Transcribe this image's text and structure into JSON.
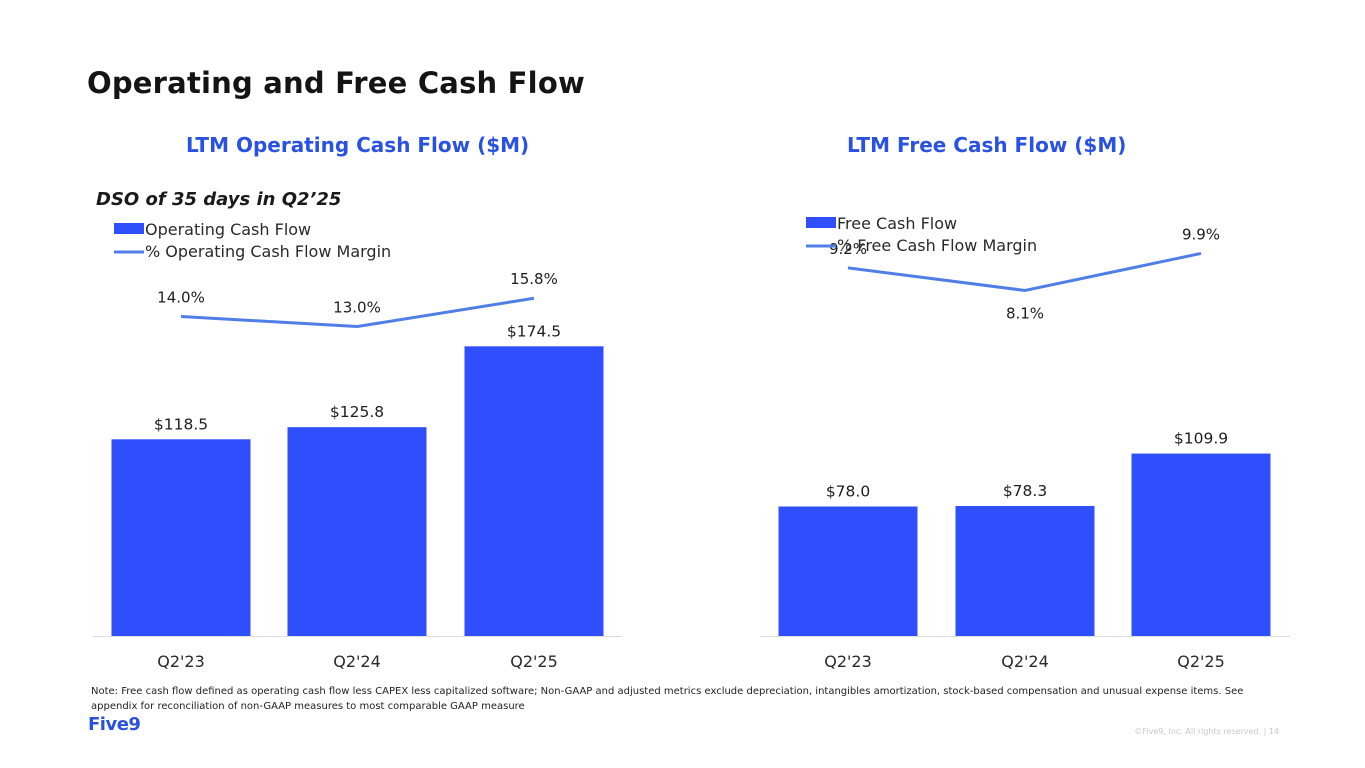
{
  "page": {
    "title": "Operating and Free Cash Flow",
    "dso_note": "DSO of 35 days in Q2’25",
    "footnote": "Note: Free cash flow defined as operating cash flow less CAPEX less capitalized software; Non-GAAP and adjusted metrics exclude depreciation, intangibles amortization, stock-based compensation and unusual expense items. See appendix for reconciliation of non-GAAP measures to most comparable GAAP measure",
    "logo": "Five9",
    "copyright": "©Five9, Inc. All rights reserved. | 14"
  },
  "colors": {
    "bar": "#2e4ffb",
    "line": "#4f7fe6",
    "title_accent": "#2952e3",
    "axis": "#dddddd"
  },
  "chart_data": [
    {
      "type": "bar",
      "title": "LTM Operating Cash Flow ($M)",
      "categories": [
        "Q2'23",
        "Q2'24",
        "Q2'25"
      ],
      "series": [
        {
          "name": "Operating Cash Flow",
          "type": "bar",
          "values": [
            118.5,
            125.8,
            174.5
          ],
          "labels": [
            "$118.5",
            "$125.8",
            "$174.5"
          ]
        },
        {
          "name": "% Operating Cash Flow Margin",
          "type": "line",
          "values": [
            14.0,
            13.0,
            15.8
          ],
          "labels": [
            "14.0%",
            "13.0%",
            "15.8%"
          ]
        }
      ],
      "ylim": [
        0,
        200
      ],
      "y2lim": [
        0,
        18
      ],
      "legend": "top-left"
    },
    {
      "type": "bar",
      "title": "LTM Free Cash Flow ($M)",
      "categories": [
        "Q2'23",
        "Q2'24",
        "Q2'25"
      ],
      "series": [
        {
          "name": "Free Cash Flow",
          "type": "bar",
          "values": [
            78.0,
            78.3,
            109.9
          ],
          "labels": [
            "$78.0",
            "$78.3",
            "$109.9"
          ]
        },
        {
          "name": "% Free Cash Flow Margin",
          "type": "line",
          "values": [
            9.2,
            8.1,
            9.9
          ],
          "labels": [
            "9.2%",
            "8.1%",
            "9.9%"
          ]
        }
      ],
      "ylim": [
        0,
        200
      ],
      "y2lim": [
        0,
        12.5
      ],
      "legend": "top-left"
    }
  ]
}
